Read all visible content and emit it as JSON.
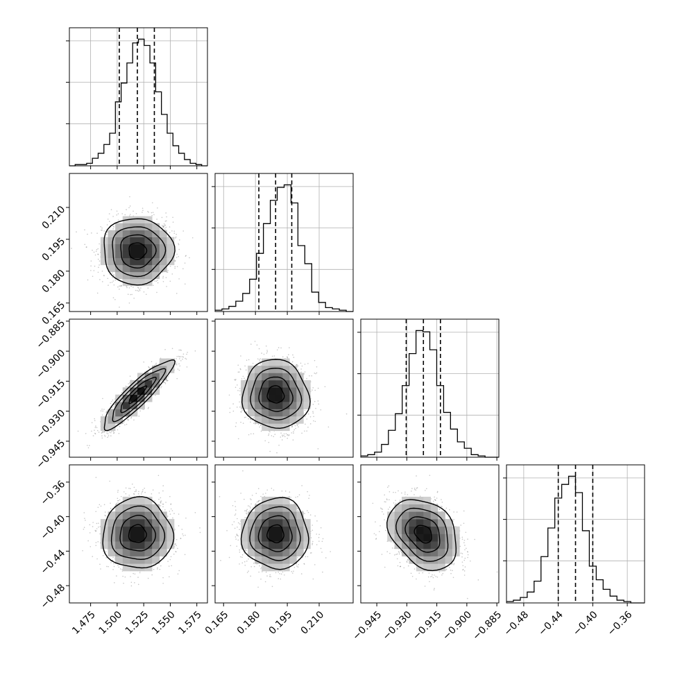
{
  "chart_data": {
    "type": "corner",
    "title": "",
    "grid": true,
    "variables": [
      {
        "range": [
          1.455,
          1.585
        ],
        "ticks": [
          1.475,
          1.5,
          1.525,
          1.55,
          1.575
        ],
        "tick_labels": [
          "1.475",
          "1.500",
          "1.525",
          "1.550",
          "1.575"
        ],
        "quantiles": [
          1.502,
          1.519,
          1.535
        ],
        "histogram": [
          0,
          1,
          1,
          2,
          6,
          10,
          17,
          26,
          51,
          66,
          82,
          98,
          101,
          96,
          82,
          59,
          41,
          26,
          16,
          10,
          5,
          2,
          1,
          0
        ]
      },
      {
        "range": [
          0.161,
          0.226
        ],
        "ticks": [
          0.165,
          0.18,
          0.195,
          0.21
        ],
        "tick_labels": [
          "0.165",
          "0.180",
          "0.195",
          "0.210"
        ],
        "quantiles": [
          0.1816,
          0.1895,
          0.1971
        ],
        "histogram": [
          1,
          2,
          4,
          8,
          14,
          25,
          45,
          68,
          86,
          96,
          98,
          84,
          51,
          37,
          15,
          7,
          3,
          2,
          1,
          0
        ]
      },
      {
        "range": [
          -0.953,
          -0.884
        ],
        "ticks": [
          -0.945,
          -0.93,
          -0.915,
          -0.9,
          -0.885
        ],
        "tick_labels": [
          "−0.945",
          "−0.930",
          "−0.915",
          "−0.900",
          "−0.885"
        ],
        "quantiles": [
          -0.9303,
          -0.9217,
          -0.9132
        ],
        "histogram": [
          1,
          2,
          4,
          10,
          21,
          34,
          56,
          81,
          99,
          98,
          84,
          56,
          35,
          22,
          12,
          7,
          2,
          1,
          0,
          0
        ]
      },
      {
        "range": [
          -0.5,
          -0.34
        ],
        "ticks": [
          -0.48,
          -0.44,
          -0.4,
          -0.36
        ],
        "tick_labels": [
          "−0.48",
          "−0.44",
          "−0.40",
          "−0.36"
        ],
        "quantiles": [
          -0.44,
          -0.42,
          -0.4
        ],
        "histogram": [
          1,
          2,
          4,
          8,
          16,
          34,
          55,
          77,
          87,
          93,
          81,
          53,
          27,
          17,
          10,
          5,
          2,
          1,
          0,
          0
        ]
      }
    ],
    "pairs": [
      {
        "row": 1,
        "col": 0,
        "mean": [
          1.519,
          0.1895
        ],
        "sd": [
          0.0165,
          0.0078
        ],
        "corr": 0.0
      },
      {
        "row": 2,
        "col": 0,
        "mean": [
          1.519,
          -0.9217
        ],
        "sd": [
          0.0165,
          0.0086
        ],
        "corr": 0.9
      },
      {
        "row": 2,
        "col": 1,
        "mean": [
          0.1895,
          -0.9217
        ],
        "sd": [
          0.0078,
          0.0086
        ],
        "corr": -0.05
      },
      {
        "row": 3,
        "col": 0,
        "mean": [
          1.519,
          -0.42
        ],
        "sd": [
          0.0165,
          0.0205
        ],
        "corr": 0.0
      },
      {
        "row": 3,
        "col": 1,
        "mean": [
          0.1895,
          -0.42
        ],
        "sd": [
          0.0078,
          0.0205
        ],
        "corr": 0.0
      },
      {
        "row": 3,
        "col": 2,
        "mean": [
          -0.9217,
          -0.42
        ],
        "sd": [
          0.0086,
          0.0205
        ],
        "corr": -0.3
      }
    ],
    "contour_sigma_levels": [
      0.5,
      1.0,
      1.5,
      2.0
    ],
    "colors": {
      "contour": "#000000",
      "points": "#808080",
      "grid": "#b0b0b0",
      "quantile_line": "#000000"
    }
  }
}
